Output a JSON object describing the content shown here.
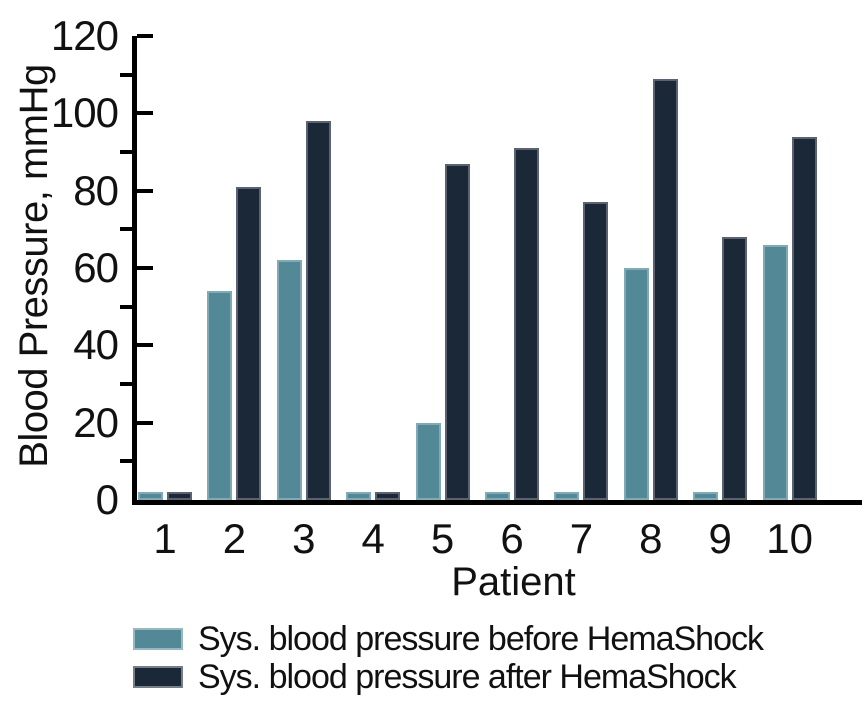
{
  "chart_data": {
    "type": "bar",
    "title": "",
    "categories": [
      "1",
      "2",
      "3",
      "4",
      "5",
      "6",
      "7",
      "8",
      "9",
      "10"
    ],
    "series": [
      {
        "name": "Sys. blood pressure before HemaShock",
        "color": "#538997",
        "values": [
          2,
          54,
          62,
          2,
          20,
          2,
          2,
          60,
          2,
          66
        ]
      },
      {
        "name": "Sys. blood pressure after HemaShock",
        "color": "#1B2838",
        "values": [
          2,
          81,
          98,
          2,
          87,
          91,
          77,
          109,
          68,
          94
        ]
      }
    ],
    "xlabel": "Patient",
    "ylabel": "Blood Pressure, mmHg",
    "ylim": [
      0,
      120
    ],
    "yticks_major": [
      0,
      20,
      40,
      60,
      80,
      100,
      120
    ],
    "yticks_minor": [
      10,
      30,
      50,
      70,
      90,
      110
    ],
    "grid": false,
    "legend_position": "bottom-left",
    "axis_color": "#000000",
    "text_color": "#111111"
  }
}
